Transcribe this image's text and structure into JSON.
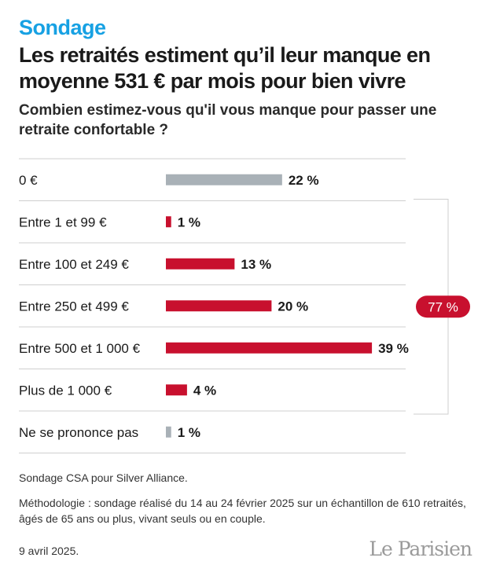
{
  "header": {
    "kicker": "Sondage",
    "title": "Les retraités estiment qu’il leur manque en moyenne 531 € par mois pour bien vivre",
    "subtitle": "Combien estimez-vous qu'il vous manque pour passer une retraite confortable ?"
  },
  "chart_data": {
    "type": "bar",
    "orientation": "horizontal",
    "categories": [
      "0 €",
      "Entre 1 et 99 €",
      "Entre 100 et 249 €",
      "Entre 250 et 499 €",
      "Entre 500 et 1 000 €",
      "Plus de 1 000 €",
      "Ne se prononce pas"
    ],
    "values": [
      22,
      1,
      13,
      20,
      39,
      4,
      1
    ],
    "value_labels": [
      "22 %",
      "1 %",
      "13 %",
      "20 %",
      "39 %",
      "4 %",
      "1 %"
    ],
    "highlighted": [
      false,
      true,
      true,
      true,
      true,
      true,
      false
    ],
    "group": {
      "label": "77 %",
      "from_index": 1,
      "to_index": 5
    },
    "colors": {
      "highlight": "#c8102e",
      "neutral": "#a9b1b7",
      "rule": "#cfcfcf",
      "badge": "#c8102e"
    },
    "grid": false
  },
  "footer": {
    "source": "Sondage CSA pour Silver Alliance.",
    "methodology": "Méthodologie : sondage réalisé du 14 au 24 février 2025 sur un échantillon de 610 retraités, âgés de 65 ans ou plus, vivant seuls ou en couple.",
    "date": "9 avril 2025.",
    "logo": "Le Parisien"
  }
}
